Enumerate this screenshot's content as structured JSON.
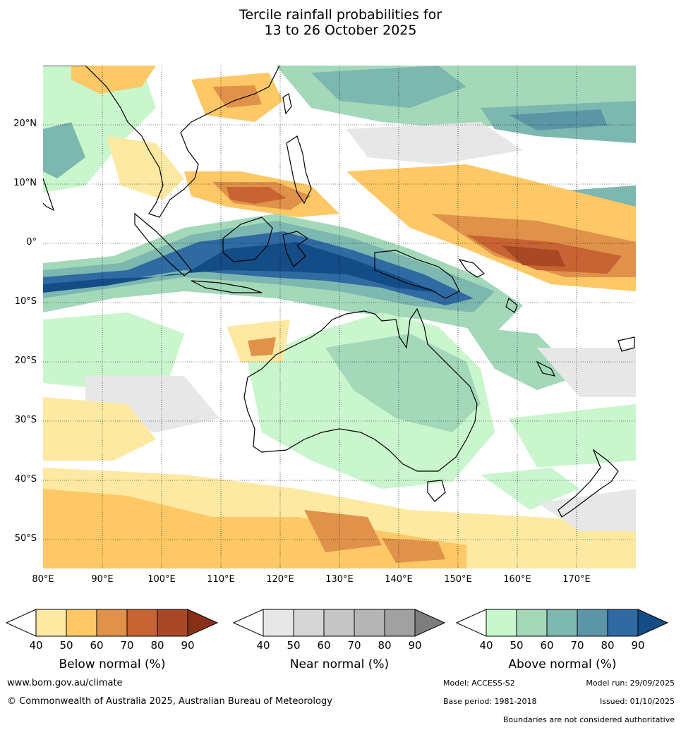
{
  "map": {
    "title_line1": "Tercile rainfall probabilities for",
    "title_line2": "13 to 26 October 2025",
    "lat_labels": [
      "20°N",
      "10°N",
      "0°",
      "10°S",
      "20°S",
      "30°S",
      "40°S",
      "50°S"
    ],
    "lon_labels": [
      "80°E",
      "90°E",
      "100°E",
      "110°E",
      "120°E",
      "130°E",
      "140°E",
      "150°E",
      "160°E",
      "170°E"
    ]
  },
  "legend": {
    "below": {
      "label": "Below normal (%)",
      "ticks": [
        "40",
        "50",
        "60",
        "70",
        "80",
        "90"
      ],
      "colors": [
        "#ffffff",
        "#fde9a2",
        "#fdc865",
        "#e0924a",
        "#c86333",
        "#a94825",
        "#8a2f17"
      ]
    },
    "near": {
      "label": "Near normal (%)",
      "ticks": [
        "40",
        "50",
        "60",
        "70",
        "80",
        "90"
      ],
      "colors": [
        "#ffffff",
        "#e7e7e7",
        "#d6d6d6",
        "#c6c6c6",
        "#b4b4b4",
        "#a1a1a1",
        "#7d7d7d"
      ]
    },
    "above": {
      "label": "Above normal (%)",
      "ticks": [
        "40",
        "50",
        "60",
        "70",
        "80",
        "90"
      ],
      "colors": [
        "#ffffff",
        "#c9f6cc",
        "#a3d8b9",
        "#7cb7b0",
        "#5b96a6",
        "#2f6aa2",
        "#134c86"
      ]
    }
  },
  "footer": {
    "website": "www.bom.gov.au/climate",
    "copyright": "© Commonwealth of Australia 2025, Australian Bureau of Meteorology",
    "model": "Model: ACCESS-S2",
    "model_run": "Model run: 29/09/2025",
    "base_period": "Base period: 1981-2018",
    "issued": "Issued: 01/10/2025",
    "disclaimer": "Boundaries are not considered authoritative"
  }
}
